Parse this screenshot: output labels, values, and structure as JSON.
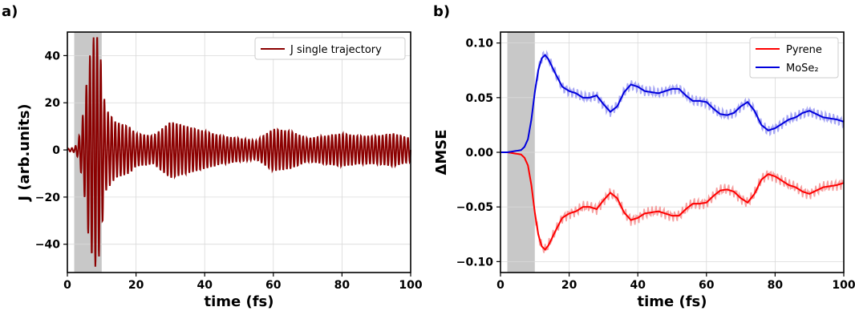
{
  "panels": [
    {
      "label": "a)"
    },
    {
      "label": "b)"
    }
  ],
  "chart_data": [
    {
      "type": "line",
      "panel": "a)",
      "title": "",
      "xlabel": "time (fs)",
      "ylabel": "J (arb.units)",
      "xlim": [
        0,
        100
      ],
      "ylim": [
        -52,
        50
      ],
      "xticks": [
        0,
        20,
        40,
        60,
        80,
        100
      ],
      "yticks": [
        -40,
        -20,
        0,
        20,
        40
      ],
      "xtick_labels": [
        "0",
        "20",
        "40",
        "60",
        "80",
        "100"
      ],
      "ytick_labels": [
        "−40",
        "−20",
        "0",
        "20",
        "40"
      ],
      "grid": true,
      "legend_position": "top-right",
      "shaded_region": {
        "x_start": 2,
        "x_end": 10,
        "color": "#c8c8c8"
      },
      "series": [
        {
          "name": "J single trajectory",
          "color": "#8b0000",
          "carrier_frequency_per_fs": 0.95,
          "envelope": {
            "x": [
              0,
              2,
              3,
              4,
              5,
              6,
              7,
              8,
              9,
              10,
              11,
              14,
              18,
              20,
              25,
              30,
              35,
              40,
              45,
              50,
              55,
              60,
              65,
              70,
              75,
              80,
              85,
              90,
              95,
              100
            ],
            "amplitude": [
              0.5,
              1,
              3,
              10,
              20,
              35,
              44,
              50,
              48,
              35,
              18,
              12,
              10,
              7,
              6,
              12,
              10,
              8,
              6,
              5,
              4,
              9,
              8,
              5,
              6,
              7,
              6,
              6,
              7,
              5
            ]
          }
        }
      ]
    },
    {
      "type": "line",
      "panel": "b)",
      "title": "",
      "xlabel": "time (fs)",
      "ylabel": "ΔMSE",
      "xlim": [
        0,
        100
      ],
      "ylim": [
        -0.11,
        0.11
      ],
      "xticks": [
        0,
        20,
        40,
        60,
        80,
        100
      ],
      "yticks": [
        -0.1,
        -0.05,
        0.0,
        0.05,
        0.1
      ],
      "xtick_labels": [
        "0",
        "20",
        "40",
        "60",
        "80",
        "100"
      ],
      "ytick_labels": [
        "−0.10",
        "−0.05",
        "0.00",
        "0.05",
        "0.10"
      ],
      "grid": true,
      "legend_position": "top-right",
      "shaded_region": {
        "x_start": 2,
        "x_end": 10,
        "color": "#c8c8c8"
      },
      "series": [
        {
          "name": "Pyrene",
          "color": "#ff0000",
          "raw_color": "#f6a0a0",
          "x": [
            0,
            2,
            4,
            6,
            7,
            8,
            9,
            10,
            11,
            12,
            13,
            14,
            16,
            18,
            20,
            22,
            24,
            26,
            28,
            30,
            32,
            34,
            36,
            38,
            40,
            42,
            44,
            46,
            48,
            50,
            52,
            54,
            56,
            58,
            60,
            62,
            64,
            66,
            68,
            70,
            72,
            74,
            76,
            78,
            80,
            82,
            84,
            86,
            88,
            90,
            92,
            94,
            96,
            98,
            100
          ],
          "y": [
            0,
            0,
            -0.001,
            -0.002,
            -0.005,
            -0.012,
            -0.03,
            -0.055,
            -0.075,
            -0.086,
            -0.089,
            -0.085,
            -0.072,
            -0.06,
            -0.056,
            -0.054,
            -0.05,
            -0.05,
            -0.052,
            -0.044,
            -0.037,
            -0.042,
            -0.055,
            -0.062,
            -0.06,
            -0.056,
            -0.055,
            -0.054,
            -0.056,
            -0.058,
            -0.058,
            -0.052,
            -0.047,
            -0.047,
            -0.046,
            -0.04,
            -0.035,
            -0.034,
            -0.036,
            -0.042,
            -0.046,
            -0.038,
            -0.025,
            -0.02,
            -0.022,
            -0.026,
            -0.03,
            -0.032,
            -0.036,
            -0.038,
            -0.035,
            -0.032,
            -0.031,
            -0.03,
            -0.028
          ]
        },
        {
          "name": "MoSe₂",
          "color": "#0000dd",
          "raw_color": "#a8a8f4",
          "x": [
            0,
            2,
            4,
            6,
            7,
            8,
            9,
            10,
            11,
            12,
            13,
            14,
            16,
            18,
            20,
            22,
            24,
            26,
            28,
            30,
            32,
            34,
            36,
            38,
            40,
            42,
            44,
            46,
            48,
            50,
            52,
            54,
            56,
            58,
            60,
            62,
            64,
            66,
            68,
            70,
            72,
            74,
            76,
            78,
            80,
            82,
            84,
            86,
            88,
            90,
            92,
            94,
            96,
            98,
            100
          ],
          "y": [
            0,
            0,
            0.001,
            0.002,
            0.005,
            0.012,
            0.03,
            0.055,
            0.075,
            0.086,
            0.089,
            0.085,
            0.072,
            0.06,
            0.056,
            0.054,
            0.05,
            0.05,
            0.052,
            0.044,
            0.037,
            0.042,
            0.055,
            0.062,
            0.06,
            0.056,
            0.055,
            0.054,
            0.056,
            0.058,
            0.058,
            0.052,
            0.047,
            0.047,
            0.046,
            0.04,
            0.035,
            0.034,
            0.036,
            0.042,
            0.046,
            0.038,
            0.025,
            0.02,
            0.022,
            0.026,
            0.03,
            0.032,
            0.036,
            0.038,
            0.035,
            0.032,
            0.031,
            0.03,
            0.028
          ]
        }
      ]
    }
  ]
}
